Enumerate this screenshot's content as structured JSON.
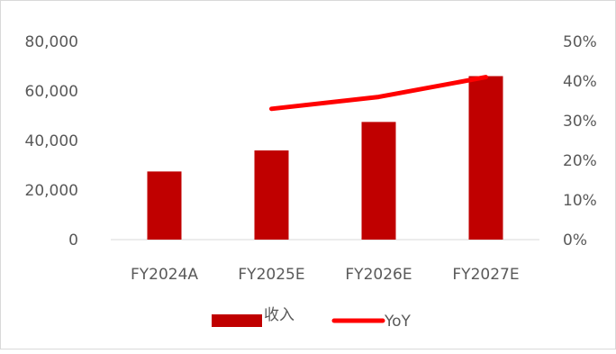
{
  "chart_data": {
    "type": "bar",
    "categories": [
      "FY2024A",
      "FY2025E",
      "FY2026E",
      "FY2027E"
    ],
    "series": [
      {
        "name": "收入",
        "type": "bar",
        "axis": "left",
        "color": "#c00000",
        "values": [
          27500,
          36000,
          47500,
          66000
        ]
      },
      {
        "name": "YoY",
        "type": "line",
        "axis": "right",
        "color": "#ff0000",
        "values": [
          null,
          0.33,
          0.36,
          0.41
        ]
      }
    ],
    "y_left": {
      "lim": [
        0,
        80000
      ],
      "ticks": [
        0,
        20000,
        40000,
        60000,
        80000
      ],
      "tick_labels": [
        "0",
        "20,000",
        "40,000",
        "60,000",
        "80,000"
      ]
    },
    "y_right": {
      "lim": [
        0,
        0.5
      ],
      "ticks": [
        0,
        0.1,
        0.2,
        0.3,
        0.4,
        0.5
      ],
      "tick_labels": [
        "0%",
        "10%",
        "20%",
        "30%",
        "40%",
        "50%"
      ]
    },
    "grid": false,
    "legend": "bottom-center",
    "title": "",
    "xlabel": "",
    "ylabel": ""
  }
}
